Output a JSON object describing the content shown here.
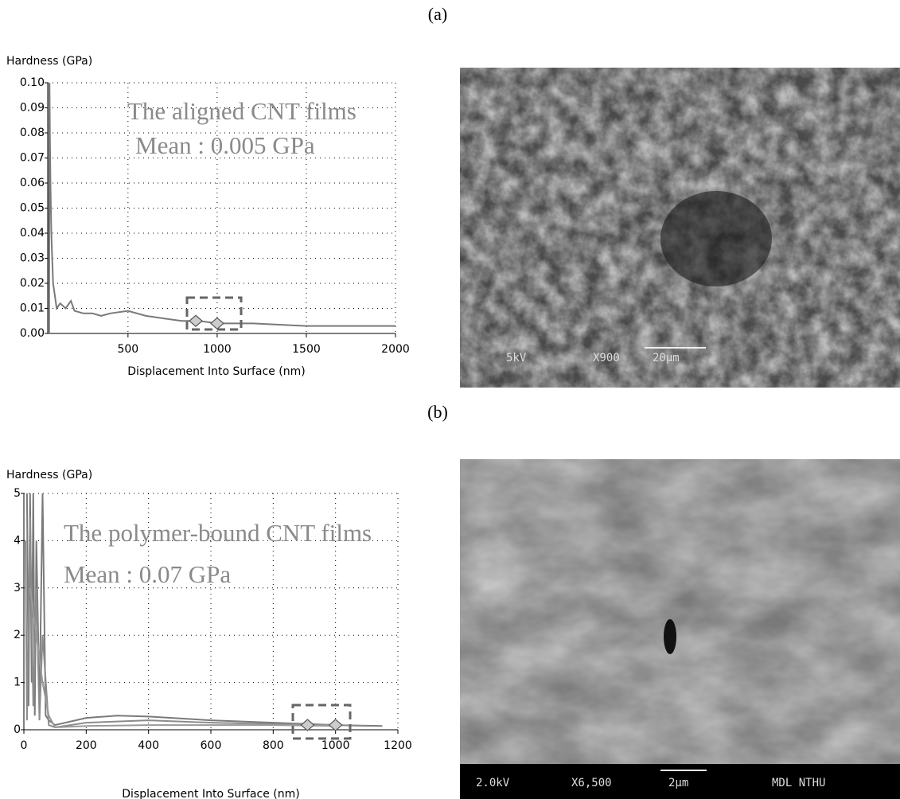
{
  "panels": [
    "(a)",
    "(b)"
  ],
  "chart_data": [
    {
      "type": "line",
      "ylabel": "Hardness (GPa)",
      "xlabel": "Displacement Into Surface (nm)",
      "annotations": [
        "The aligned CNT  films",
        "Mean : 0.005 GPa"
      ],
      "xlim": [
        50,
        2000
      ],
      "xticks": [
        500,
        1000,
        1500,
        2000
      ],
      "ylim": [
        0,
        0.1
      ],
      "yticks": [
        {
          "value": 0,
          "label": "0.00"
        },
        {
          "value": 0.01,
          "label": "0.01"
        },
        {
          "value": 0.02,
          "label": "0.02"
        },
        {
          "value": 0.03,
          "label": "0.03"
        },
        {
          "value": 0.04,
          "label": "0.04"
        },
        {
          "value": 0.05,
          "label": "0.05"
        },
        {
          "value": 0.06,
          "label": "0.06"
        },
        {
          "value": 0.07,
          "label": "0.07"
        },
        {
          "value": 0.08,
          "label": "0.08"
        },
        {
          "value": 0.09,
          "label": "0.09"
        },
        {
          "value": 0.1,
          "label": "0.10"
        }
      ],
      "grid": true,
      "series": [
        {
          "color": "#7a7a7a",
          "x": [
            55,
            58,
            60,
            62,
            65,
            70,
            75,
            80,
            90,
            100,
            120,
            150,
            180,
            200,
            250,
            300,
            350,
            400,
            500,
            600,
            700,
            800,
            900,
            1000,
            1200,
            1500,
            1800,
            2000
          ],
          "values": [
            0.1,
            0.0,
            0.1,
            0.08,
            0.06,
            0.04,
            0.03,
            0.02,
            0.015,
            0.01,
            0.012,
            0.01,
            0.013,
            0.009,
            0.008,
            0.008,
            0.007,
            0.008,
            0.009,
            0.007,
            0.006,
            0.005,
            0.005,
            0.004,
            0.004,
            0.003,
            0.003,
            0.003
          ]
        }
      ],
      "points": {
        "x": [
          880,
          1000
        ],
        "values": [
          0.005,
          0.004
        ]
      }
    },
    {
      "type": "line",
      "ylabel": "Hardness (GPa)",
      "xlabel": "Displacement Into Surface (nm)",
      "annotations": [
        "The  polymer-bound CNT films",
        "Mean : 0.07 GPa"
      ],
      "xlim": [
        0,
        1200
      ],
      "xticks": [
        0,
        200,
        400,
        600,
        800,
        1000,
        1200
      ],
      "ylim": [
        0,
        5
      ],
      "yticks": [
        0,
        1,
        2,
        3,
        4,
        5
      ],
      "grid": true,
      "series": [
        {
          "color": "#7a7a7a",
          "x": [
            10,
            15,
            20,
            25,
            30,
            35,
            40,
            50,
            60,
            70,
            80,
            100,
            200,
            300,
            400,
            600,
            800,
            1000,
            1150
          ],
          "values": [
            5,
            0.5,
            5,
            1,
            5,
            0.3,
            4,
            0.5,
            5,
            0.3,
            0.2,
            0.1,
            0.25,
            0.3,
            0.28,
            0.2,
            0.15,
            0.1,
            0.08
          ]
        },
        {
          "color": "#8c8c8c",
          "x": [
            5,
            10,
            20,
            30,
            40,
            50,
            60,
            80,
            100,
            200,
            400,
            600,
            800,
            1000,
            1100
          ],
          "values": [
            4,
            0.2,
            4.5,
            0.5,
            3,
            0.2,
            2,
            0.1,
            0.05,
            0.15,
            0.2,
            0.15,
            0.12,
            0.1,
            0.08
          ]
        },
        {
          "color": "#9a9a9a",
          "x": [
            20,
            40,
            60,
            80,
            100,
            200,
            400,
            600,
            800,
            1000
          ],
          "values": [
            3,
            2,
            1,
            0.3,
            0.05,
            0.08,
            0.1,
            0.1,
            0.1,
            0.08
          ]
        }
      ],
      "points": {
        "x": [
          910,
          1000
        ],
        "values": [
          0.1,
          0.1
        ]
      }
    }
  ],
  "images": [
    {
      "caption": [
        "5kV",
        "X900",
        "20μm"
      ]
    },
    {
      "caption": [
        "2.0kV",
        "X6,500",
        "2μm",
        "MDL NTHU"
      ]
    }
  ]
}
